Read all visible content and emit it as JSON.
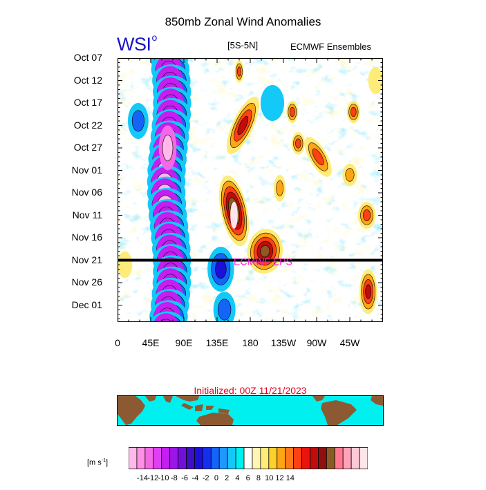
{
  "title": "850mb Zonal Wind Anomalies",
  "logo": {
    "text": "WSI",
    "mark": "o"
  },
  "region": "[5S-5N]",
  "source": "ECMWF Ensembles",
  "initialized": "Initialized: 00Z 11/21/2023",
  "forecast_label": "ECMWF EPS",
  "units": {
    "base": "[m s",
    "exp": "-1",
    "close": "]"
  },
  "chart_data": {
    "type": "heatmap",
    "title": "850mb Zonal Wind Anomalies",
    "x_ticks": [
      "0",
      "45E",
      "90E",
      "135E",
      "180",
      "135W",
      "90W",
      "45W"
    ],
    "y_ticks": [
      "Oct 07",
      "Oct 12",
      "Oct 17",
      "Oct 22",
      "Oct 27",
      "Nov 01",
      "Nov 06",
      "Nov 11",
      "Nov 16",
      "Nov 21",
      "Nov 26",
      "Dec 01"
    ],
    "x_range": [
      0,
      360
    ],
    "y_range": [
      "Oct 07",
      "Dec 06"
    ],
    "forecast_start": "Nov 21",
    "colorbar_levels": [
      -14,
      -12,
      -10,
      -8,
      -6,
      -4,
      -2,
      0,
      2,
      4,
      6,
      8,
      10,
      12,
      14
    ],
    "colorbar_labels": [
      "-14",
      "-12",
      "-10",
      "-8",
      "-6",
      "-4",
      "-2",
      "0",
      "2",
      "4",
      "6",
      "8",
      "10",
      "12",
      "14"
    ],
    "colorbar_colors": [
      "#ffb8ea",
      "#ff90e4",
      "#f368e6",
      "#e040f2",
      "#c41ef0",
      "#9c14e6",
      "#7010d8",
      "#3c10c4",
      "#1c10d8",
      "#1430ec",
      "#1464f8",
      "#1e98ff",
      "#14c8f8",
      "#00f0f0",
      "#ffffff",
      "#fff6b4",
      "#ffec78",
      "#ffd02c",
      "#ffa414",
      "#ff781c",
      "#ff4014",
      "#e8140e",
      "#c00c0c",
      "#901010",
      "#8c5a22",
      "#ff7890",
      "#ffa4b8",
      "#ffc8d6",
      "#ffe4ea"
    ],
    "features": [
      {
        "name": "Indian Ocean easterly anomaly band",
        "sign": "negative",
        "lon": [
          50,
          90
        ],
        "dates": [
          "Oct 07",
          "Dec 06"
        ],
        "min": -14
      },
      {
        "name": "West Pacific westerly burst",
        "sign": "positive",
        "lon": [
          140,
          170
        ],
        "dates": [
          "Nov 06",
          "Nov 16"
        ],
        "max": 14
      },
      {
        "name": "Central Pacific westerly anomaly",
        "sign": "positive",
        "lon": [
          175,
          220
        ],
        "dates": [
          "Nov 14",
          "Nov 21"
        ],
        "max": 10
      },
      {
        "name": "East Pacific westerly anomaly",
        "sign": "positive",
        "lon": [
          330,
          350
        ],
        "dates": [
          "Nov 25",
          "Nov 30"
        ],
        "max": 8
      }
    ]
  }
}
